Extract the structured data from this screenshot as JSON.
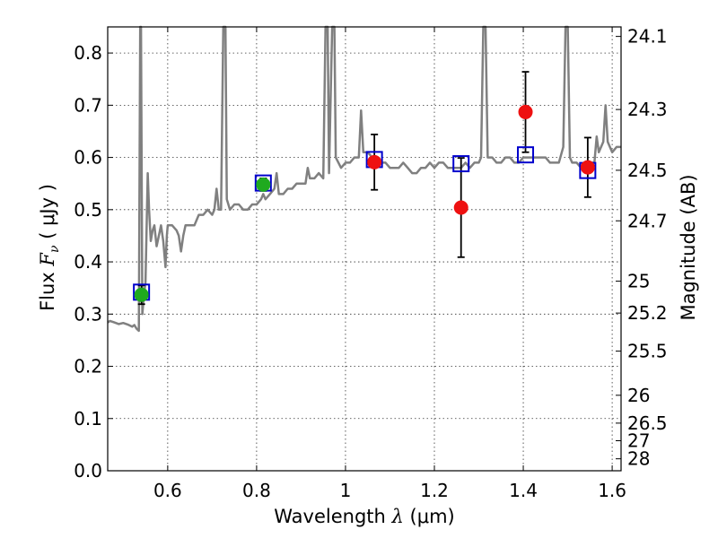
{
  "chart_data": {
    "type": "scatter",
    "xlabel_prefix": "Wavelength",
    "xlabel_symbol": "λ",
    "xlabel_unit": "(μm)",
    "ylabel_prefix": "Flux",
    "ylabel_symbol": "F",
    "ylabel_subscript": "ν",
    "ylabel_unit": "( μJy )",
    "y2label": "Magnitude (AB)",
    "xlim": [
      0.465,
      1.62
    ],
    "ylim": [
      0.0,
      0.85
    ],
    "grid": true,
    "x_ticks": [
      0.6,
      0.8,
      1.0,
      1.2,
      1.4,
      1.6
    ],
    "x_tick_labels": [
      "0.6",
      "0.8",
      "1",
      "1.2",
      "1.4",
      "1.6"
    ],
    "y_ticks": [
      0.0,
      0.1,
      0.2,
      0.3,
      0.4,
      0.5,
      0.6,
      0.7,
      0.8
    ],
    "y_tick_labels": [
      "0.0",
      "0.1",
      "0.2",
      "0.3",
      "0.4",
      "0.5",
      "0.6",
      "0.7",
      "0.8"
    ],
    "mag_ticks": [
      24.1,
      24.3,
      24.5,
      24.7,
      25,
      25.2,
      25.5,
      26,
      26.5,
      27,
      28
    ],
    "mag_tick_labels": [
      "24.1",
      "24.3",
      "24.5",
      "24.7",
      "25",
      "25.2",
      "25.5",
      "26",
      "26.5",
      "27",
      "28"
    ],
    "colors": {
      "model": "#808080",
      "photometry_green": "#1faa1f",
      "photometry_red": "#ee1111",
      "model_box": "#0000cc",
      "errorbar": "#000000",
      "grid": "#333333"
    },
    "series": [
      {
        "name": "model spectrum",
        "kind": "line",
        "points": [
          [
            0.465,
            0.284
          ],
          [
            0.47,
            0.287
          ],
          [
            0.48,
            0.284
          ],
          [
            0.49,
            0.281
          ],
          [
            0.5,
            0.283
          ],
          [
            0.51,
            0.28
          ],
          [
            0.52,
            0.276
          ],
          [
            0.525,
            0.279
          ],
          [
            0.53,
            0.272
          ],
          [
            0.535,
            0.268
          ],
          [
            0.538,
            0.85
          ],
          [
            0.54,
            0.85
          ],
          [
            0.543,
            0.3
          ],
          [
            0.547,
            0.34
          ],
          [
            0.55,
            0.36
          ],
          [
            0.555,
            0.57
          ],
          [
            0.558,
            0.5
          ],
          [
            0.562,
            0.44
          ],
          [
            0.566,
            0.46
          ],
          [
            0.57,
            0.47
          ],
          [
            0.575,
            0.43
          ],
          [
            0.58,
            0.45
          ],
          [
            0.585,
            0.47
          ],
          [
            0.59,
            0.44
          ],
          [
            0.595,
            0.39
          ],
          [
            0.598,
            0.45
          ],
          [
            0.6,
            0.47
          ],
          [
            0.61,
            0.47
          ],
          [
            0.62,
            0.46
          ],
          [
            0.625,
            0.45
          ],
          [
            0.63,
            0.42
          ],
          [
            0.635,
            0.45
          ],
          [
            0.64,
            0.47
          ],
          [
            0.65,
            0.47
          ],
          [
            0.66,
            0.47
          ],
          [
            0.67,
            0.49
          ],
          [
            0.68,
            0.49
          ],
          [
            0.69,
            0.5
          ],
          [
            0.7,
            0.49
          ],
          [
            0.705,
            0.5
          ],
          [
            0.71,
            0.54
          ],
          [
            0.715,
            0.5
          ],
          [
            0.72,
            0.5
          ],
          [
            0.725,
            0.85
          ],
          [
            0.73,
            0.85
          ],
          [
            0.733,
            0.52
          ],
          [
            0.74,
            0.5
          ],
          [
            0.75,
            0.51
          ],
          [
            0.76,
            0.51
          ],
          [
            0.77,
            0.5
          ],
          [
            0.78,
            0.5
          ],
          [
            0.79,
            0.51
          ],
          [
            0.8,
            0.51
          ],
          [
            0.81,
            0.52
          ],
          [
            0.815,
            0.53
          ],
          [
            0.82,
            0.52
          ],
          [
            0.83,
            0.53
          ],
          [
            0.84,
            0.54
          ],
          [
            0.845,
            0.57
          ],
          [
            0.85,
            0.53
          ],
          [
            0.86,
            0.53
          ],
          [
            0.87,
            0.54
          ],
          [
            0.88,
            0.54
          ],
          [
            0.89,
            0.55
          ],
          [
            0.9,
            0.55
          ],
          [
            0.91,
            0.55
          ],
          [
            0.915,
            0.58
          ],
          [
            0.92,
            0.56
          ],
          [
            0.93,
            0.56
          ],
          [
            0.94,
            0.57
          ],
          [
            0.95,
            0.56
          ],
          [
            0.955,
            0.85
          ],
          [
            0.96,
            0.85
          ],
          [
            0.963,
            0.57
          ],
          [
            0.97,
            0.85
          ],
          [
            0.975,
            0.85
          ],
          [
            0.978,
            0.6
          ],
          [
            0.99,
            0.58
          ],
          [
            1.0,
            0.59
          ],
          [
            1.01,
            0.59
          ],
          [
            1.02,
            0.6
          ],
          [
            1.03,
            0.6
          ],
          [
            1.035,
            0.69
          ],
          [
            1.04,
            0.61
          ],
          [
            1.05,
            0.61
          ],
          [
            1.06,
            0.6
          ],
          [
            1.07,
            0.6
          ],
          [
            1.08,
            0.59
          ],
          [
            1.09,
            0.59
          ],
          [
            1.1,
            0.58
          ],
          [
            1.11,
            0.58
          ],
          [
            1.12,
            0.58
          ],
          [
            1.13,
            0.59
          ],
          [
            1.14,
            0.58
          ],
          [
            1.15,
            0.57
          ],
          [
            1.16,
            0.57
          ],
          [
            1.17,
            0.58
          ],
          [
            1.18,
            0.58
          ],
          [
            1.19,
            0.59
          ],
          [
            1.2,
            0.58
          ],
          [
            1.21,
            0.59
          ],
          [
            1.22,
            0.59
          ],
          [
            1.23,
            0.58
          ],
          [
            1.24,
            0.58
          ],
          [
            1.25,
            0.58
          ],
          [
            1.26,
            0.58
          ],
          [
            1.27,
            0.59
          ],
          [
            1.28,
            0.58
          ],
          [
            1.29,
            0.59
          ],
          [
            1.3,
            0.59
          ],
          [
            1.305,
            0.6
          ],
          [
            1.31,
            0.85
          ],
          [
            1.315,
            0.85
          ],
          [
            1.32,
            0.6
          ],
          [
            1.33,
            0.6
          ],
          [
            1.34,
            0.59
          ],
          [
            1.35,
            0.59
          ],
          [
            1.36,
            0.6
          ],
          [
            1.37,
            0.6
          ],
          [
            1.38,
            0.59
          ],
          [
            1.39,
            0.59
          ],
          [
            1.4,
            0.6
          ],
          [
            1.41,
            0.6
          ],
          [
            1.42,
            0.6
          ],
          [
            1.43,
            0.6
          ],
          [
            1.44,
            0.6
          ],
          [
            1.45,
            0.6
          ],
          [
            1.46,
            0.59
          ],
          [
            1.47,
            0.59
          ],
          [
            1.48,
            0.59
          ],
          [
            1.49,
            0.62
          ],
          [
            1.495,
            0.85
          ],
          [
            1.5,
            0.85
          ],
          [
            1.505,
            0.6
          ],
          [
            1.51,
            0.59
          ],
          [
            1.52,
            0.59
          ],
          [
            1.53,
            0.58
          ],
          [
            1.54,
            0.58
          ],
          [
            1.55,
            0.59
          ],
          [
            1.56,
            0.59
          ],
          [
            1.565,
            0.64
          ],
          [
            1.57,
            0.61
          ],
          [
            1.58,
            0.63
          ],
          [
            1.585,
            0.7
          ],
          [
            1.59,
            0.63
          ],
          [
            1.6,
            0.61
          ],
          [
            1.61,
            0.62
          ],
          [
            1.62,
            0.62
          ]
        ]
      },
      {
        "name": "observed (green)",
        "kind": "points",
        "points": [
          {
            "x": 0.541,
            "y": 0.337,
            "err": 0.018
          },
          {
            "x": 0.815,
            "y": 0.548,
            "err": 0.012
          }
        ]
      },
      {
        "name": "observed (red)",
        "kind": "points",
        "points": [
          {
            "x": 1.065,
            "y": 0.591,
            "err": 0.053
          },
          {
            "x": 1.26,
            "y": 0.504,
            "err": 0.095
          },
          {
            "x": 1.405,
            "y": 0.687,
            "err": 0.077
          },
          {
            "x": 1.545,
            "y": 0.581,
            "err": 0.057
          }
        ]
      },
      {
        "name": "model photometry",
        "kind": "squares",
        "points": [
          {
            "x": 0.541,
            "y": 0.342
          },
          {
            "x": 0.815,
            "y": 0.551
          },
          {
            "x": 1.065,
            "y": 0.596
          },
          {
            "x": 1.26,
            "y": 0.588
          },
          {
            "x": 1.405,
            "y": 0.605
          },
          {
            "x": 1.545,
            "y": 0.575
          }
        ]
      }
    ]
  }
}
